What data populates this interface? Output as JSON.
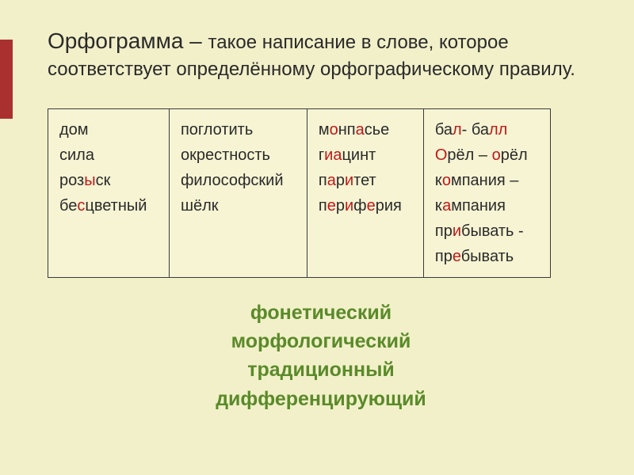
{
  "background_color": "#f2f0c9",
  "accent_bar_color": "#aa3030",
  "title": {
    "term": "Орфограмма",
    "dash": " – ",
    "rest1": "такое написание в слове, которое",
    "rest2": "соответствует определённому орфографическому правилу.",
    "term_fontsize": 28,
    "rest_fontsize": 24
  },
  "table": {
    "border_color": "#3a3a3a",
    "cell_bg": "#f6f4d3",
    "fontsize": 20,
    "highlight_color": "#c01818",
    "columns": [
      {
        "lines": [
          [
            {
              "t": "дом"
            }
          ],
          [
            {
              "t": "сила"
            }
          ],
          [
            {
              "t": "роз"
            },
            {
              "t": "ы",
              "hl": true
            },
            {
              "t": "ск"
            }
          ],
          [
            {
              "t": "бе"
            },
            {
              "t": "с",
              "hl": true
            },
            {
              "t": "цветный"
            }
          ]
        ]
      },
      {
        "lines": [
          [
            {
              "t": "поглотить"
            }
          ],
          [
            {
              "t": "окрестность"
            }
          ],
          [
            {
              "t": "философский"
            }
          ],
          [
            {
              "t": "шёлк"
            }
          ]
        ]
      },
      {
        "lines": [
          [
            {
              "t": "м"
            },
            {
              "t": "о",
              "hl": true
            },
            {
              "t": "нп"
            },
            {
              "t": "а",
              "hl": true
            },
            {
              "t": "сье"
            }
          ],
          [
            {
              "t": "г"
            },
            {
              "t": "иа",
              "hl": true
            },
            {
              "t": "цинт"
            }
          ],
          [
            {
              "t": "п"
            },
            {
              "t": "а",
              "hl": true
            },
            {
              "t": "р"
            },
            {
              "t": "и",
              "hl": true
            },
            {
              "t": "тет"
            }
          ],
          [
            {
              "t": "п"
            },
            {
              "t": "е",
              "hl": true
            },
            {
              "t": "р"
            },
            {
              "t": "и",
              "hl": true
            },
            {
              "t": "ф"
            },
            {
              "t": "е",
              "hl": true
            },
            {
              "t": "рия"
            }
          ]
        ]
      },
      {
        "lines": [
          [
            {
              "t": "ба"
            },
            {
              "t": "л",
              "hl": true
            },
            {
              "t": "- ба"
            },
            {
              "t": "лл",
              "hl": true
            }
          ],
          [
            {
              "t": "О",
              "hl": true
            },
            {
              "t": "рёл – "
            },
            {
              "t": "о",
              "hl": true
            },
            {
              "t": "рёл"
            }
          ],
          [
            {
              "t": "к"
            },
            {
              "t": "о",
              "hl": true
            },
            {
              "t": "мпания –"
            }
          ],
          [
            {
              "t": "к"
            },
            {
              "t": "а",
              "hl": true
            },
            {
              "t": "мпания"
            }
          ],
          [
            {
              "t": "пр"
            },
            {
              "t": "и",
              "hl": true
            },
            {
              "t": "бывать -"
            }
          ],
          [
            {
              "t": "пр"
            },
            {
              "t": "е",
              "hl": true
            },
            {
              "t": "бывать"
            }
          ]
        ]
      }
    ]
  },
  "principles": {
    "color": "#5a8a2a",
    "fontsize": 25,
    "items": [
      "фонетический",
      "морфологический",
      "традиционный",
      "дифференцирующий"
    ]
  }
}
